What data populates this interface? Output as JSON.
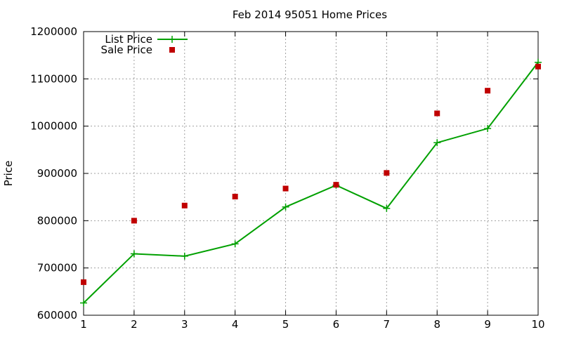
{
  "chart_data": {
    "type": "line",
    "title": "Feb 2014 95051 Home Prices",
    "xlabel": "",
    "ylabel": "Price",
    "x": [
      1,
      2,
      3,
      4,
      5,
      6,
      7,
      8,
      9,
      10
    ],
    "xlim": [
      1,
      10
    ],
    "ylim": [
      600000,
      1200000
    ],
    "xticks": [
      1,
      2,
      3,
      4,
      5,
      6,
      7,
      8,
      9,
      10
    ],
    "yticks": [
      600000,
      700000,
      800000,
      900000,
      1000000,
      1100000,
      1200000
    ],
    "grid": true,
    "legend_position": "top-left",
    "series": [
      {
        "name": "List Price",
        "style": "line-with-plus-markers",
        "color": "#00a000",
        "values": [
          626000,
          730000,
          725000,
          751000,
          829000,
          875000,
          826000,
          965000,
          995000,
          1135000
        ]
      },
      {
        "name": "Sale Price",
        "style": "square-markers",
        "color": "#c00000",
        "values": [
          670000,
          800000,
          832000,
          851000,
          868000,
          876000,
          901000,
          1027000,
          1075000,
          1126000
        ]
      }
    ]
  }
}
